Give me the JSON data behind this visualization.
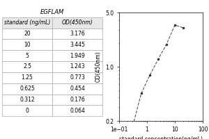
{
  "table_title": "EGFLAM",
  "col1_header": "standard (ng/mL)",
  "col2_header": "OD(450nm)",
  "concentrations": [
    20,
    10,
    5,
    2.5,
    1.25,
    0.625,
    0.312,
    0
  ],
  "od_values": [
    3.176,
    3.445,
    1.949,
    1.243,
    0.773,
    0.454,
    0.176,
    0.064
  ],
  "xlabel": "standard concentration(ng/mL)",
  "ylabel": "OD(450nm)",
  "plot_bg": "#ffffff",
  "line_color": "#555555",
  "marker_color": "#333333",
  "xlim_log": [
    0.1,
    100
  ],
  "ylim_log": [
    0.2,
    5
  ],
  "table_font_size": 5.5,
  "axis_font_size": 5.5
}
